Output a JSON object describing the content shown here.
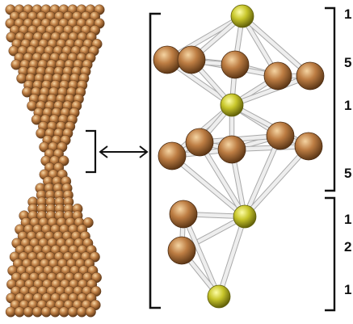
{
  "figure": {
    "layer_counts": [
      "1",
      "5",
      "1",
      "5",
      "1",
      "2",
      "1"
    ]
  },
  "colors": {
    "copper": "#b8783f",
    "copper_highlight": "#f3cf9a",
    "copper_shadow": "#5a3515",
    "dopant": "#b3b21e",
    "dopant_highlight": "#fbfb9a",
    "bond": "#e9e9e9",
    "bond_edge": "#a9a9a9",
    "bracket": "#111111"
  }
}
